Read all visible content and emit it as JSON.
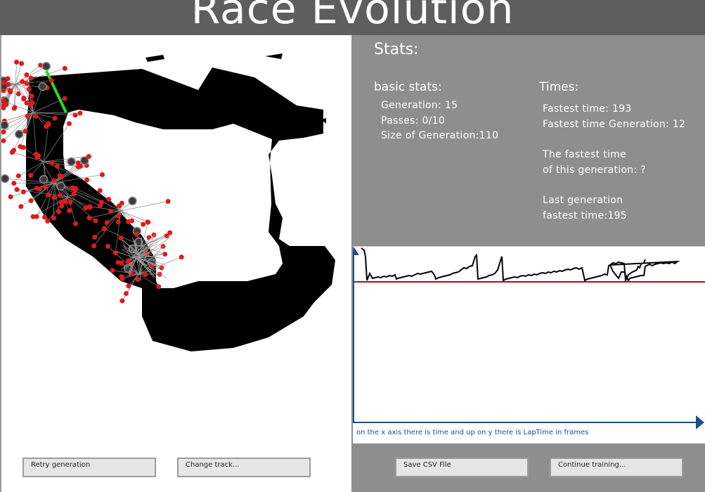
{
  "title": "Race Evolution",
  "stats": {
    "heading": "Stats:",
    "basic": {
      "heading": "basic stats:",
      "generation": "Generation: 15",
      "passes": "Passes: 0/10",
      "size": "Size of Generation:110"
    },
    "times": {
      "heading": "Times:",
      "fastest_time": "Fastest time: 193",
      "fastest_time_generation": "Fastest time Generation: 12",
      "current_fastest_line1": "The fastest time",
      "current_fastest_line2": "of this generation: ?",
      "last_fastest_line1": "Last generation",
      "last_fastest_line2": "fastest time:195"
    }
  },
  "graph": {
    "caption": "on the x axis there is time and up on y there is LapTime in frames"
  },
  "buttons": {
    "retry": "Retry generation",
    "change_track": "Change track...",
    "save_csv": "Save CSV File",
    "continue": "Continue training..."
  },
  "colors": {
    "title_bar": "#5e5e5e",
    "panel": "#8e8e8e",
    "track": "#000000",
    "car": "#e01a1a",
    "checkpoint": "#22dd22",
    "axis": "#1d4f86",
    "reference_line": "#b01010"
  }
}
